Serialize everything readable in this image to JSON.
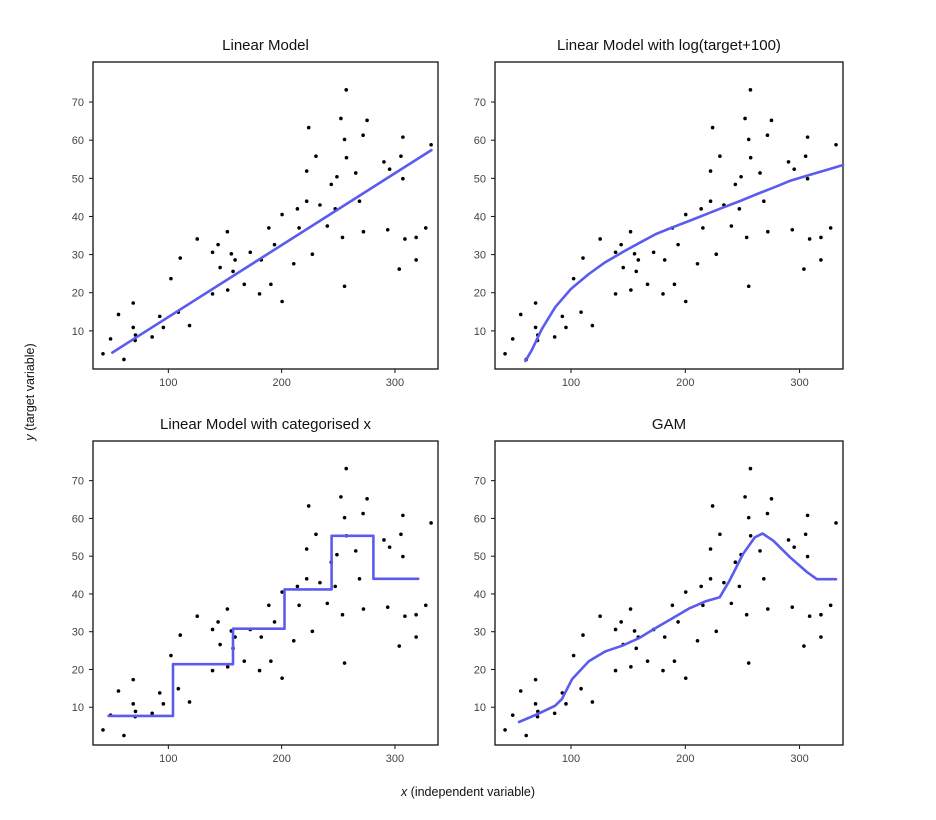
{
  "chart_data": {
    "type": "scatter",
    "xlabel": {
      "var": "x",
      "rest": " (independent variable)"
    },
    "ylabel": {
      "var": "y",
      "rest": " (target variable)"
    },
    "xlim": [
      33.5,
      338
    ],
    "ylim": [
      0,
      80.5
    ],
    "xticks": [
      100,
      200,
      300
    ],
    "yticks": [
      10,
      20,
      30,
      40,
      50,
      60,
      70
    ],
    "grid": false,
    "line_color": "#5b5bf0",
    "point_color": "#000000",
    "points": {
      "x": [
        42.3,
        49,
        56,
        60.8,
        69,
        69,
        71,
        70.7,
        85.7,
        92.4,
        95.6,
        102.3,
        108.8,
        110.5,
        118.7,
        125.5,
        139,
        139,
        143.9,
        145.7,
        152.1,
        152.4,
        155.6,
        158.9,
        157.1,
        167,
        172.3,
        180.5,
        182,
        188.7,
        190.5,
        193.7,
        200.4,
        200.4,
        210.7,
        213.9,
        215.4,
        222.1,
        222.1,
        223.9,
        227.1,
        230.3,
        233.8,
        240.3,
        243.8,
        247.3,
        248.8,
        252.3,
        253.7,
        255.5,
        255.5,
        257,
        257.2,
        265.4,
        268.7,
        271.9,
        272.2,
        275.4,
        290.3,
        293.6,
        295.3,
        303.8,
        305.3,
        307,
        307,
        308.8,
        318.7,
        318.7,
        327.2,
        331.9
      ],
      "y": [
        4.0,
        7.9,
        14.3,
        2.5,
        17.3,
        10.9,
        8.9,
        7.5,
        8.4,
        13.8,
        10.9,
        23.7,
        14.9,
        29.1,
        11.4,
        34.1,
        30.6,
        19.7,
        32.6,
        26.6,
        36.0,
        20.7,
        30.2,
        28.6,
        25.6,
        22.2,
        30.6,
        19.7,
        28.6,
        37.0,
        22.2,
        32.6,
        17.7,
        40.5,
        27.6,
        42.0,
        37.0,
        51.9,
        44.0,
        63.3,
        30.1,
        55.8,
        43.0,
        37.5,
        48.4,
        42.0,
        50.4,
        65.7,
        34.5,
        60.2,
        21.7,
        73.2,
        55.4,
        51.4,
        44.0,
        61.3,
        36.0,
        65.2,
        54.3,
        36.5,
        52.4,
        26.2,
        55.8,
        60.8,
        49.9,
        34.1,
        34.5,
        28.6,
        37.0,
        58.8
      ]
    },
    "panels": [
      {
        "title": "Linear Model",
        "fit": {
          "x": [
            50.5,
            332.2
          ],
          "y": [
            4.3,
            57.4
          ]
        }
      },
      {
        "title": "Linear Model with log(target+100)",
        "fit": {
          "x": [
            60.1,
            65.6,
            74.4,
            86.2,
            100,
            115.6,
            130,
            145,
            160,
            174.4,
            190,
            204.1,
            220,
            233.5,
            250,
            262.9,
            280,
            292.2,
            310,
            325,
            338
          ],
          "y": [
            2.1,
            4.9,
            10.4,
            16.2,
            21.0,
            24.9,
            28.0,
            30.6,
            33.1,
            35.4,
            37.3,
            38.9,
            40.8,
            42.4,
            44.3,
            45.9,
            47.9,
            49.4,
            51.0,
            52.3,
            53.5
          ]
        }
      },
      {
        "title": "Linear Model with categorised x",
        "fit": {
          "x": [
            47.3,
            104.1,
            104.1,
            157.1,
            157.1,
            202.5,
            202.5,
            244.1,
            244.1,
            281,
            281,
            320.5
          ],
          "y": [
            7.7,
            7.7,
            21.4,
            21.4,
            30.8,
            30.8,
            41.2,
            41.2,
            55.4,
            55.4,
            44.0,
            44.0
          ]
        }
      },
      {
        "title": "GAM",
        "fit": {
          "x": [
            54.5,
            71.5,
            86.2,
            92.1,
            100.9,
            115.6,
            130.2,
            144.9,
            159.6,
            174.3,
            189,
            203.7,
            218.3,
            230.1,
            238.9,
            250.6,
            260.9,
            267.6,
            277,
            291.7,
            306.4,
            315.2,
            331.9
          ],
          "y": [
            6.1,
            8.3,
            10.4,
            12.2,
            17.4,
            22.2,
            24.8,
            26.3,
            28.3,
            31.0,
            33.6,
            36.2,
            38.1,
            39.1,
            43.6,
            50.6,
            55.0,
            56.0,
            54.1,
            49.7,
            45.8,
            43.9,
            43.9
          ]
        }
      }
    ]
  }
}
